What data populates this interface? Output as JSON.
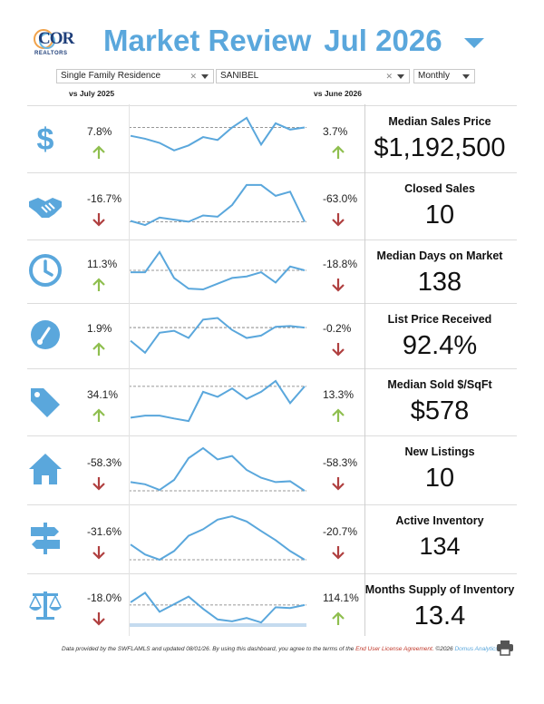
{
  "header": {
    "logo_text": "COR",
    "logo_sub": "REALTORS",
    "title": "Market Review",
    "period": "Jul 2026"
  },
  "filters": {
    "property_type": "Single Family Residence",
    "location": "SANIBEL",
    "frequency": "Monthly"
  },
  "columns": {
    "vs_year": "vs July 2025",
    "vs_month": "vs June 2026"
  },
  "colors": {
    "accent": "#5aa7dc",
    "up": "#8fbf4f",
    "down": "#b04040"
  },
  "metrics": [
    {
      "label": "Median Sales Price",
      "value": "$1,192,500",
      "yoy": "7.8%",
      "yoy_dir": "up",
      "mom": "3.7%",
      "mom_dir": "up",
      "icon": "dollar-icon",
      "spark": [
        0.55,
        0.48,
        0.38,
        0.2,
        0.32,
        0.52,
        0.45,
        0.75,
        0.98,
        0.34,
        0.85,
        0.7,
        0.75
      ]
    },
    {
      "label": "Closed Sales",
      "value": "10",
      "yoy": "-16.7%",
      "yoy_dir": "down",
      "mom": "-63.0%",
      "mom_dir": "down",
      "icon": "handshake-icon",
      "spark": [
        0.12,
        0.02,
        0.2,
        0.15,
        0.1,
        0.25,
        0.22,
        0.5,
        0.98,
        0.98,
        0.72,
        0.82,
        0.1
      ]
    },
    {
      "label": "Median Days on Market",
      "value": "138",
      "yoy": "11.3%",
      "yoy_dir": "up",
      "mom": "-18.8%",
      "mom_dir": "down",
      "icon": "clock-icon",
      "spark": [
        0.45,
        0.45,
        0.98,
        0.3,
        0.02,
        0.0,
        0.15,
        0.3,
        0.34,
        0.45,
        0.18,
        0.6,
        0.5
      ]
    },
    {
      "label": "List Price Received",
      "value": "92.4%",
      "yoy": "1.9%",
      "yoy_dir": "up",
      "mom": "-0.2%",
      "mom_dir": "down",
      "icon": "gauge-icon",
      "spark": [
        0.35,
        0.05,
        0.55,
        0.6,
        0.42,
        0.88,
        0.92,
        0.62,
        0.42,
        0.48,
        0.7,
        0.72,
        0.68
      ]
    },
    {
      "label": "Median Sold $/SqFt",
      "value": "$578",
      "yoy": "34.1%",
      "yoy_dir": "up",
      "mom": "13.3%",
      "mom_dir": "up",
      "icon": "tag-icon",
      "spark": [
        0.1,
        0.15,
        0.15,
        0.08,
        0.02,
        0.72,
        0.6,
        0.8,
        0.55,
        0.72,
        0.98,
        0.45,
        0.85
      ]
    },
    {
      "label": "New Listings",
      "value": "10",
      "yoy": "-58.3%",
      "yoy_dir": "down",
      "mom": "-58.3%",
      "mom_dir": "down",
      "icon": "house-icon",
      "spark": [
        0.2,
        0.15,
        0.02,
        0.25,
        0.75,
        0.98,
        0.72,
        0.8,
        0.48,
        0.3,
        0.2,
        0.22,
        0.0
      ]
    },
    {
      "label": "Active Inventory",
      "value": "134",
      "yoy": "-31.6%",
      "yoy_dir": "down",
      "mom": "-20.7%",
      "mom_dir": "down",
      "icon": "signpost-icon",
      "spark": [
        0.35,
        0.12,
        0.0,
        0.2,
        0.55,
        0.7,
        0.92,
        1.0,
        0.88,
        0.66,
        0.45,
        0.2,
        0.0
      ]
    },
    {
      "label": "Months Supply of Inventory",
      "value": "13.4",
      "yoy": "-18.0%",
      "yoy_dir": "down",
      "mom": "114.1%",
      "mom_dir": "up",
      "icon": "scale-icon",
      "spark": [
        0.55,
        0.8,
        0.3,
        0.5,
        0.7,
        0.38,
        0.1,
        0.05,
        0.14,
        0.02,
        0.42,
        0.4,
        0.48
      ]
    }
  ],
  "footer": {
    "text_a": "Data provided by the SWFLAMLS and updated 08/01/26.  By using this dashboard, you agree to the terms of the ",
    "license": "End User License Agreement.",
    "text_b": "  ©2026 ",
    "brand": "Domus Analytics®"
  }
}
